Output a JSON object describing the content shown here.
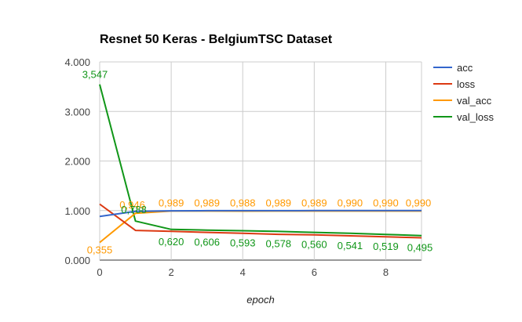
{
  "chart_data": {
    "type": "line",
    "title": "Resnet 50 Keras - BelgiumTSC Dataset",
    "xlabel": "epoch",
    "ylabel": "",
    "x": [
      0,
      1,
      2,
      3,
      4,
      5,
      6,
      7,
      8,
      9
    ],
    "xlim": [
      0,
      9
    ],
    "ylim": [
      0,
      4
    ],
    "x_ticks": [
      0,
      2,
      4,
      6,
      8
    ],
    "x_tick_labels": [
      "0",
      "2",
      "4",
      "6",
      "8"
    ],
    "y_ticks": [
      0,
      1,
      2,
      3,
      4
    ],
    "y_tick_labels": [
      "0.000",
      "1.000",
      "2.000",
      "3.000",
      "4.000"
    ],
    "grid": true,
    "legend_position": "right",
    "series": [
      {
        "name": "acc",
        "color": "#3366cc",
        "values": [
          0.88,
          0.985,
          0.995,
          0.997,
          0.998,
          0.998,
          0.999,
          0.999,
          0.999,
          0.999
        ]
      },
      {
        "name": "loss",
        "color": "#dc3912",
        "values": [
          1.13,
          0.6,
          0.58,
          0.56,
          0.54,
          0.52,
          0.51,
          0.49,
          0.47,
          0.45
        ]
      },
      {
        "name": "val_acc",
        "color": "#ff9900",
        "values": [
          0.355,
          0.946,
          0.989,
          0.989,
          0.988,
          0.989,
          0.989,
          0.99,
          0.99,
          0.99
        ],
        "labels": [
          "0,355",
          "0,946",
          "0,989",
          "0,989",
          "0,988",
          "0,989",
          "0,989",
          "0,990",
          "0,990",
          "0,990"
        ]
      },
      {
        "name": "val_loss",
        "color": "#109618",
        "values": [
          3.547,
          0.788,
          0.62,
          0.606,
          0.593,
          0.578,
          0.56,
          0.541,
          0.519,
          0.495
        ],
        "labels": [
          "3,547",
          "0,788",
          "0,620",
          "0,606",
          "0,593",
          "0,578",
          "0,560",
          "0,541",
          "0,519",
          "0,495"
        ]
      }
    ]
  }
}
